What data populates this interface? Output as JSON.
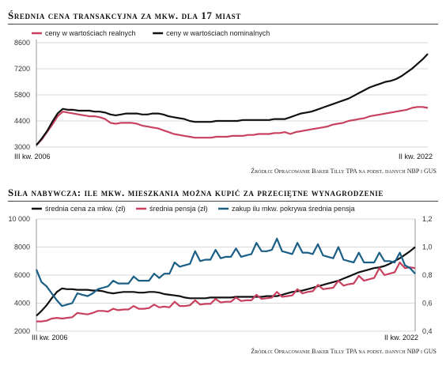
{
  "colors": {
    "real": "#c8415e",
    "black": "#111111",
    "teal": "#1b5f86"
  },
  "top": {
    "title": "Średnia cena transakcyjna za mkw. dla 17 miast",
    "source": "Źródło: Opracowanie Baker Tilly TPA na podst. danych NBP i GUS",
    "chart_data": {
      "type": "line",
      "x_start_label": "III kw. 2006",
      "x_end_label": "II kw. 2022",
      "ylim": [
        3000,
        8600
      ],
      "yticks": [
        3000,
        4400,
        5800,
        7200,
        8600
      ],
      "grid": true,
      "legend_position": "top-left",
      "series": [
        {
          "name": "ceny w wartościach realnych",
          "color": "#c8415e",
          "values": [
            3100,
            3400,
            3800,
            4200,
            4650,
            4900,
            4850,
            4800,
            4750,
            4700,
            4650,
            4650,
            4600,
            4500,
            4300,
            4250,
            4300,
            4300,
            4300,
            4250,
            4150,
            4100,
            4050,
            4000,
            3900,
            3800,
            3700,
            3650,
            3600,
            3550,
            3500,
            3500,
            3500,
            3500,
            3550,
            3550,
            3550,
            3600,
            3600,
            3600,
            3650,
            3650,
            3700,
            3700,
            3700,
            3750,
            3750,
            3800,
            3700,
            3800,
            3850,
            3900,
            3950,
            4000,
            4050,
            4100,
            4200,
            4250,
            4300,
            4400,
            4450,
            4500,
            4550,
            4650,
            4700,
            4750,
            4800,
            4850,
            4900,
            4950,
            5000,
            5100,
            5150,
            5150,
            5100
          ]
        },
        {
          "name": "ceny w wartościach nominalnych",
          "color": "#111111",
          "values": [
            3100,
            3450,
            3850,
            4350,
            4800,
            5050,
            5000,
            5000,
            4950,
            4950,
            4950,
            4900,
            4900,
            4850,
            4750,
            4700,
            4750,
            4800,
            4800,
            4800,
            4750,
            4750,
            4800,
            4800,
            4750,
            4650,
            4600,
            4550,
            4500,
            4400,
            4350,
            4350,
            4350,
            4350,
            4400,
            4400,
            4400,
            4400,
            4400,
            4450,
            4450,
            4450,
            4450,
            4450,
            4450,
            4500,
            4500,
            4500,
            4600,
            4700,
            4800,
            4850,
            4900,
            5000,
            5100,
            5200,
            5300,
            5400,
            5500,
            5600,
            5750,
            5900,
            6050,
            6200,
            6300,
            6400,
            6500,
            6550,
            6650,
            6800,
            7000,
            7200,
            7450,
            7700,
            8000
          ]
        }
      ]
    }
  },
  "bottom": {
    "title": "Siła nabywcza: ile mkw. mieszkania można kupić za przeciętne wynagrodzenie",
    "source": "Źródło: Opracowanie Baker Tilly TPA na podst. danych NBP i GUS",
    "chart_data": {
      "type": "line",
      "x_start_label": "III kw. 2006",
      "x_end_label": "II kw. 2022",
      "ylim_left": [
        2000,
        10000
      ],
      "yticks_left": [
        2000,
        4000,
        6000,
        8000,
        10000
      ],
      "yticks_left_labels": [
        "2000",
        "4000",
        "6000",
        "8000",
        "10 000"
      ],
      "ylim_right": [
        0.4,
        1.2
      ],
      "yticks_right": [
        0.4,
        0.6,
        0.8,
        1.0,
        1.2
      ],
      "yticks_right_labels": [
        "0,4",
        "0,6",
        "0,8",
        "1,0",
        "1,2"
      ],
      "grid": true,
      "legend_position": "top",
      "series": [
        {
          "name": "średnia cena za mkw. (zł)",
          "color": "#111111",
          "axis": "left",
          "values": [
            3100,
            3450,
            3850,
            4350,
            4800,
            5050,
            5000,
            5000,
            4950,
            4950,
            4950,
            4900,
            4900,
            4850,
            4750,
            4700,
            4750,
            4800,
            4800,
            4800,
            4750,
            4750,
            4800,
            4800,
            4750,
            4650,
            4600,
            4550,
            4500,
            4400,
            4350,
            4350,
            4350,
            4350,
            4400,
            4400,
            4400,
            4400,
            4400,
            4450,
            4450,
            4450,
            4450,
            4450,
            4450,
            4500,
            4500,
            4500,
            4600,
            4700,
            4800,
            4850,
            4900,
            5000,
            5100,
            5200,
            5300,
            5400,
            5500,
            5600,
            5750,
            5900,
            6050,
            6200,
            6300,
            6400,
            6500,
            6550,
            6650,
            6800,
            7000,
            7200,
            7450,
            7700,
            8000
          ]
        },
        {
          "name": "średnia pensja (zł)",
          "color": "#c8415e",
          "axis": "left",
          "values": [
            2700,
            2700,
            2750,
            2900,
            2950,
            2900,
            2950,
            3000,
            3300,
            3250,
            3200,
            3300,
            3450,
            3450,
            3400,
            3600,
            3500,
            3550,
            3550,
            3800,
            3600,
            3600,
            3650,
            3900,
            3700,
            3750,
            3700,
            4100,
            3800,
            3800,
            3850,
            4200,
            3900,
            3950,
            3950,
            4300,
            4050,
            4100,
            4100,
            4400,
            4150,
            4200,
            4200,
            4600,
            4300,
            4350,
            4400,
            4800,
            4450,
            4500,
            4550,
            5000,
            4700,
            4800,
            4850,
            5300,
            5000,
            5050,
            5100,
            5600,
            5250,
            5350,
            5400,
            5950,
            5600,
            5700,
            5800,
            6500,
            6000,
            6100,
            6200,
            6900,
            6500,
            6550,
            6500
          ]
        },
        {
          "name": "zakup ilu mkw. pokrywa średnia pensja",
          "color": "#1b5f86",
          "axis": "right",
          "values": [
            0.84,
            0.75,
            0.72,
            0.67,
            0.62,
            0.58,
            0.59,
            0.6,
            0.67,
            0.66,
            0.65,
            0.67,
            0.7,
            0.71,
            0.72,
            0.76,
            0.74,
            0.74,
            0.74,
            0.79,
            0.76,
            0.76,
            0.76,
            0.81,
            0.78,
            0.81,
            0.81,
            0.89,
            0.86,
            0.87,
            0.88,
            0.97,
            0.9,
            0.91,
            0.91,
            0.98,
            0.92,
            0.93,
            0.93,
            0.99,
            0.93,
            0.94,
            0.95,
            1.03,
            0.97,
            0.97,
            0.98,
            1.06,
            0.97,
            0.96,
            0.95,
            1.03,
            0.96,
            0.96,
            0.95,
            1.02,
            0.94,
            0.93,
            0.92,
            1.0,
            0.91,
            0.9,
            0.89,
            0.96,
            0.89,
            0.89,
            0.89,
            0.96,
            0.9,
            0.9,
            0.89,
            0.96,
            0.87,
            0.85,
            0.81
          ]
        }
      ]
    }
  }
}
